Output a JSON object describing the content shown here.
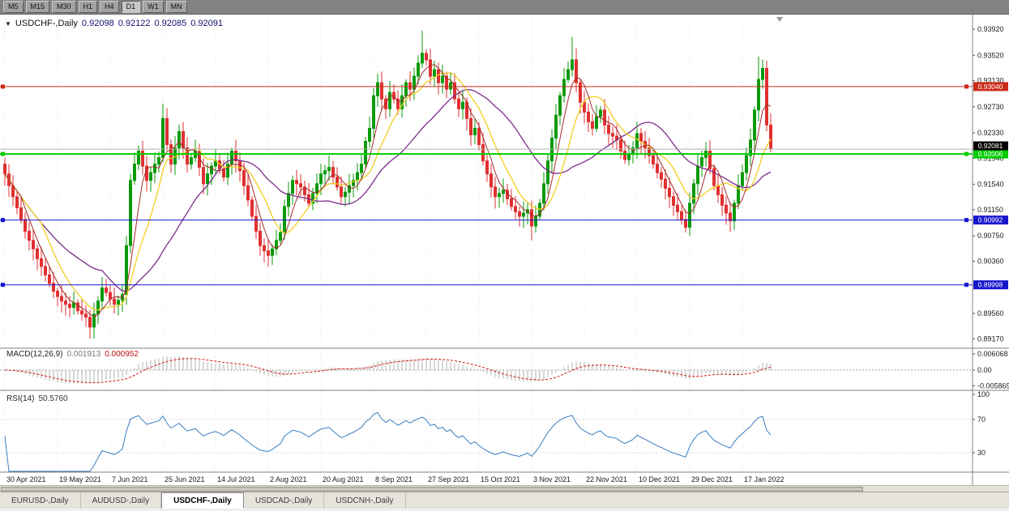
{
  "toolbar": {
    "timeframes": [
      "M5",
      "M15",
      "M30",
      "H1",
      "H4",
      "D1",
      "W1",
      "MN"
    ],
    "active": "D1"
  },
  "chart_header": {
    "dropdown_icon": "▼",
    "symbol": "USDCHF-,Daily",
    "open": "0.92098",
    "high": "0.92122",
    "low": "0.92085",
    "close": "0.92091"
  },
  "indicators": {
    "macd": {
      "label": "MACD(12,26,9)",
      "value1": "0.001913",
      "value2": "0.000952",
      "scale": [
        "0.006068",
        "0.00",
        "-0.005869"
      ],
      "scale_values": [
        0.006068,
        0,
        -0.005869
      ]
    },
    "rsi": {
      "label": "RSI(14)",
      "value": "50.5760",
      "scale": [
        "100",
        "70",
        "30"
      ],
      "scale_values": [
        100,
        70,
        30
      ],
      "levels": [
        70,
        30
      ]
    }
  },
  "chart_data": {
    "type": "candlestick",
    "symbol": "USDCHF",
    "timeframe": "Daily",
    "current": {
      "open": 0.92098,
      "high": 0.92122,
      "low": 0.92085,
      "close": 0.92091
    },
    "x_labels": [
      "30 Apr 2021",
      "19 May 2021",
      "7 Jun 2021",
      "25 Jun 2021",
      "14 Jul 2021",
      "2 Aug 2021",
      "20 Aug 2021",
      "8 Sep 2021",
      "27 Sep 2021",
      "15 Oct 2021",
      "3 Nov 2021",
      "22 Nov 2021",
      "10 Dec 2021",
      "29 Dec 2021",
      "17 Jan 2022"
    ],
    "label_every": 13,
    "price_range": {
      "min": 0.8905,
      "max": 0.9412
    },
    "price_axis_ticks": [
      0.9392,
      0.9352,
      0.9313,
      0.9273,
      0.9233,
      0.9194,
      0.9154,
      0.9115,
      0.9075,
      0.9036,
      0.8956,
      0.8917
    ],
    "closes": [
      0.917,
      0.9152,
      0.9135,
      0.9118,
      0.91,
      0.9082,
      0.9068,
      0.9055,
      0.904,
      0.9028,
      0.9015,
      0.9002,
      0.899,
      0.8982,
      0.8975,
      0.897,
      0.8965,
      0.8972,
      0.896,
      0.8955,
      0.895,
      0.8935,
      0.8955,
      0.8975,
      0.8995,
      0.8988,
      0.8978,
      0.897,
      0.8976,
      0.8985,
      0.906,
      0.916,
      0.9185,
      0.9205,
      0.9182,
      0.916,
      0.9172,
      0.9185,
      0.9195,
      0.9255,
      0.9215,
      0.9185,
      0.921,
      0.9235,
      0.921,
      0.9185,
      0.9195,
      0.9205,
      0.918,
      0.9155,
      0.917,
      0.9182,
      0.919,
      0.9178,
      0.9165,
      0.9185,
      0.9205,
      0.919,
      0.9175,
      0.9152,
      0.913,
      0.9105,
      0.9082,
      0.906,
      0.9052,
      0.9045,
      0.9055,
      0.9068,
      0.908,
      0.912,
      0.914,
      0.916,
      0.9155,
      0.915,
      0.9138,
      0.9125,
      0.914,
      0.9155,
      0.917,
      0.9175,
      0.918,
      0.9165,
      0.915,
      0.9135,
      0.9142,
      0.9152,
      0.916,
      0.9172,
      0.9185,
      0.922,
      0.924,
      0.929,
      0.931,
      0.9285,
      0.927,
      0.9295,
      0.9285,
      0.927,
      0.929,
      0.931,
      0.93,
      0.932,
      0.934,
      0.9355,
      0.9345,
      0.932,
      0.933,
      0.931,
      0.932,
      0.93,
      0.931,
      0.9285,
      0.927,
      0.928,
      0.9255,
      0.923,
      0.924,
      0.9215,
      0.919,
      0.917,
      0.915,
      0.9135,
      0.914,
      0.9145,
      0.9132,
      0.912,
      0.9112,
      0.9105,
      0.911,
      0.9115,
      0.909,
      0.9105,
      0.9125,
      0.9155,
      0.919,
      0.9225,
      0.926,
      0.929,
      0.9315,
      0.933,
      0.9345,
      0.931,
      0.928,
      0.9265,
      0.925,
      0.924,
      0.9258,
      0.9268,
      0.9245,
      0.9232,
      0.9228,
      0.9222,
      0.9205,
      0.9192,
      0.92,
      0.921,
      0.9232,
      0.922,
      0.921,
      0.9198,
      0.9185,
      0.9172,
      0.9162,
      0.9148,
      0.9135,
      0.9122,
      0.9112,
      0.91,
      0.9088,
      0.9125,
      0.9155,
      0.9182,
      0.9195,
      0.9205,
      0.9178,
      0.9152,
      0.9138,
      0.9122,
      0.911,
      0.9098,
      0.9125,
      0.9152,
      0.9172,
      0.9198,
      0.9222,
      0.9268,
      0.9315,
      0.9332,
      0.9245,
      0.92091
    ],
    "spike_highs": {
      "39": 0.9278,
      "103": 0.939,
      "140": 0.938,
      "186": 0.935
    },
    "spike_lows": {
      "21": 0.8918,
      "65": 0.9028,
      "130": 0.9068,
      "168": 0.908,
      "179": 0.9086
    },
    "levels": [
      {
        "price": 0.9304,
        "badge": "0.93040",
        "color": "#cc2a1a",
        "width": 1
      },
      {
        "price": 0.92006,
        "badge": "0.92006",
        "color": "#00cc00",
        "width": 2
      },
      {
        "price": 0.90992,
        "badge": "0.90992",
        "color": "#1515cc",
        "width": 1
      },
      {
        "price": 0.89998,
        "badge": "0.89998",
        "color": "#1515cc",
        "width": 1
      }
    ],
    "bid_line": {
      "price": 0.92081,
      "badge": "0.92081",
      "line_color": "#b0b0b0",
      "badge_bg": "#000000"
    },
    "ma_periods": {
      "fast": 5,
      "mid": 10,
      "slow": 25
    },
    "colors": {
      "up": "#0a9a0a",
      "down": "#e03030",
      "grid": "#e9e9e9",
      "ma_fast": "#a52a2a",
      "ma_mid": "#f0cf1e",
      "ma_slow": "#7b2d8b",
      "macd_hist": "#b2b2b2",
      "macd_signal": "#d41414",
      "rsi": "#3a7ec0",
      "axis_text": "#1a1a1a",
      "separator": "#808080"
    }
  },
  "scrollbar": {
    "thumb_width_pct": 85.5
  },
  "tabs": [
    {
      "label": "EURUSD-,Daily",
      "active": false
    },
    {
      "label": "AUDUSD-,Daily",
      "active": false
    },
    {
      "label": "USDCHF-,Daily",
      "active": true
    },
    {
      "label": "USDCAD-,Daily",
      "active": false
    },
    {
      "label": "USDCNH-,Daily",
      "active": false
    }
  ]
}
